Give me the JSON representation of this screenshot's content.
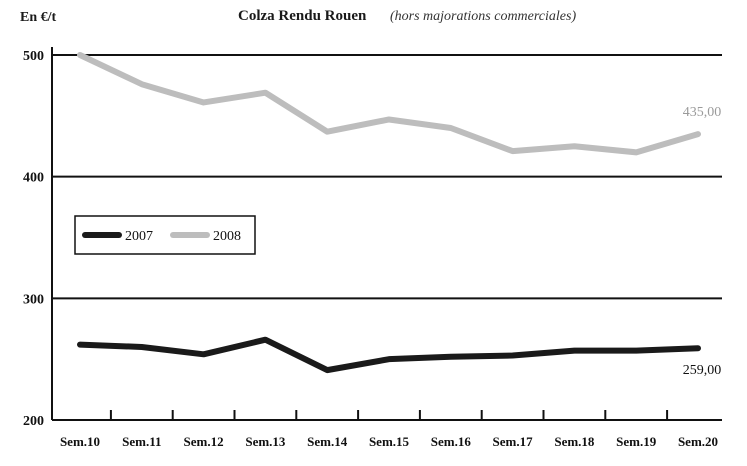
{
  "chart_data": {
    "type": "line",
    "title": "Colza Rendu Rouen",
    "subtitle": "(hors majorations commerciales)",
    "ylabel": "En €/t",
    "xlabel": "",
    "categories": [
      "Sem.10",
      "Sem.11",
      "Sem.12",
      "Sem.13",
      "Sem.14",
      "Sem.15",
      "Sem.16",
      "Sem.17",
      "Sem.18",
      "Sem.19",
      "Sem.20"
    ],
    "yticks": [
      200,
      300,
      400,
      500
    ],
    "ylim": [
      200,
      500
    ],
    "grid": true,
    "legend_position": "left",
    "series": [
      {
        "name": "2007",
        "color": "#1a1a1a",
        "values": [
          262,
          260,
          254,
          266,
          241,
          250,
          252,
          253,
          257,
          257,
          259
        ]
      },
      {
        "name": "2008",
        "color": "#bdbdbd",
        "values": [
          500,
          476,
          461,
          469,
          437,
          447,
          440,
          421,
          425,
          420,
          435
        ]
      }
    ],
    "annotations": [
      {
        "series": "2007",
        "text": "259,00"
      },
      {
        "series": "2008",
        "text": "435,00"
      }
    ]
  }
}
